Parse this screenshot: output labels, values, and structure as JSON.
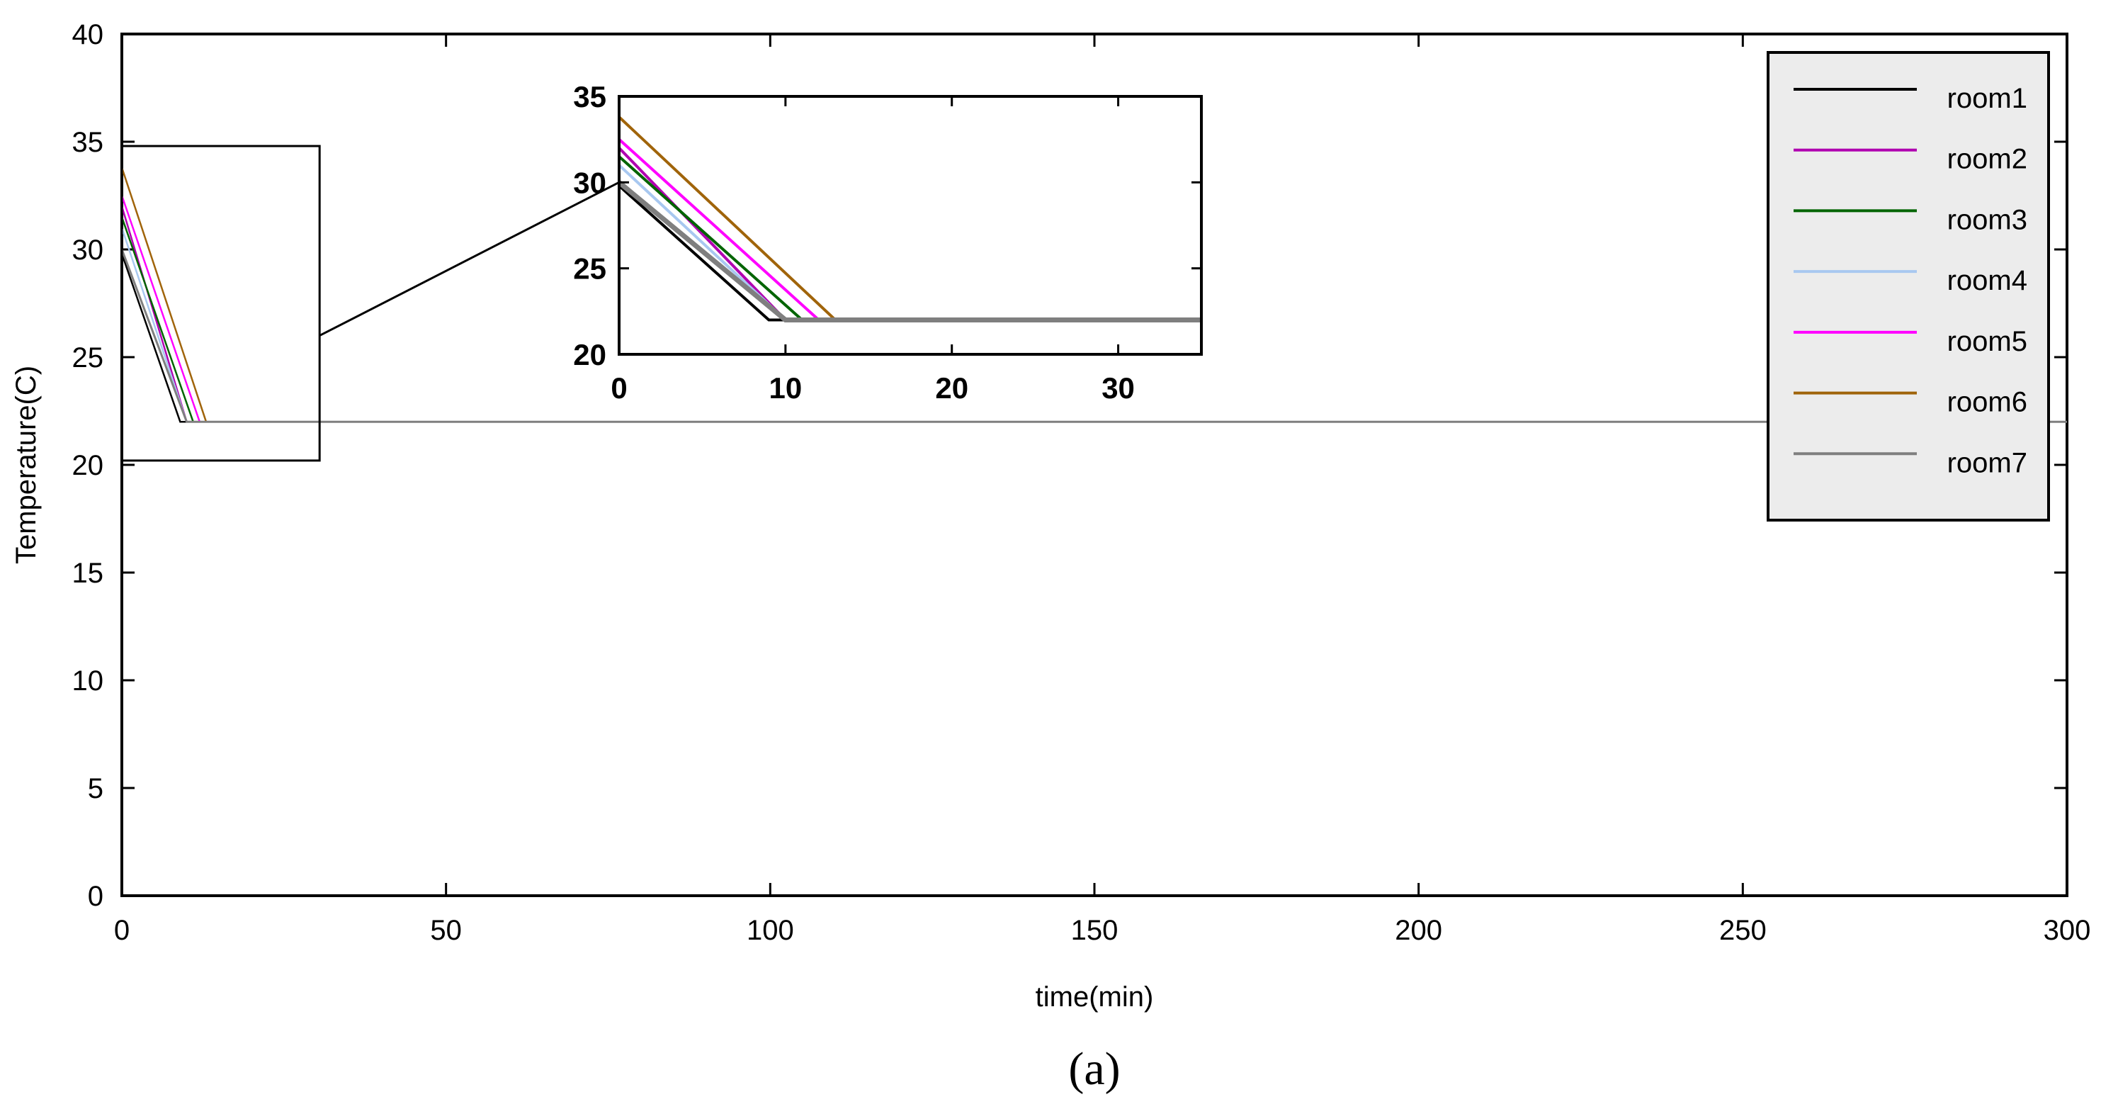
{
  "chart_data": {
    "type": "line",
    "title": "",
    "xlabel": "time(min)",
    "ylabel": "Temperature(C)",
    "xlim": [
      0,
      300
    ],
    "ylim": [
      0,
      40
    ],
    "xticks": [
      "0",
      "50",
      "100",
      "150",
      "200",
      "250",
      "300"
    ],
    "yticks": [
      "0",
      "5",
      "10",
      "15",
      "20",
      "25",
      "30",
      "35",
      "40"
    ],
    "grid": false,
    "legend_position": "top-right",
    "series": [
      {
        "name": "room1",
        "color": "#000000",
        "x": [
          0,
          9,
          300
        ],
        "y": [
          29.8,
          22.0,
          22.0
        ]
      },
      {
        "name": "room2",
        "color": "#b000b0",
        "x": [
          0,
          10,
          300
        ],
        "y": [
          32.0,
          22.0,
          22.0
        ]
      },
      {
        "name": "room3",
        "color": "#006400",
        "x": [
          0,
          11,
          300
        ],
        "y": [
          31.5,
          22.0,
          22.0
        ]
      },
      {
        "name": "room4",
        "color": "#a8c8f0",
        "x": [
          0,
          10,
          300
        ],
        "y": [
          31.0,
          22.0,
          22.0
        ]
      },
      {
        "name": "room5",
        "color": "#ff00ff",
        "x": [
          0,
          12,
          300
        ],
        "y": [
          32.5,
          22.0,
          22.0
        ]
      },
      {
        "name": "room6",
        "color": "#a0640a",
        "x": [
          0,
          13,
          300
        ],
        "y": [
          33.8,
          22.0,
          22.0
        ]
      },
      {
        "name": "room7",
        "color": "#7f7f7f",
        "x": [
          0,
          10,
          300
        ],
        "y": [
          30.0,
          22.0,
          22.0
        ]
      }
    ],
    "inset": {
      "xlim": [
        0,
        35
      ],
      "ylim": [
        20,
        35
      ],
      "xticks": [
        "0",
        "10",
        "20",
        "30"
      ],
      "yticks": [
        "20",
        "25",
        "30",
        "35"
      ]
    }
  },
  "caption": "(a)"
}
